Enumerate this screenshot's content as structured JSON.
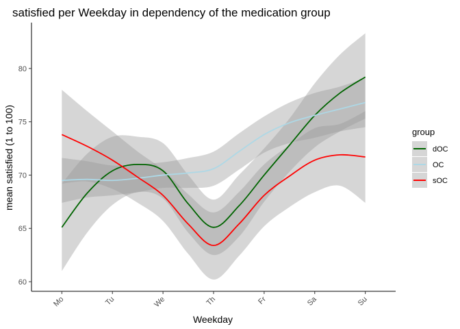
{
  "chart_data": {
    "type": "line",
    "title": "satisfied per Weekday in dependency of the medication group",
    "xlabel": "Weekday",
    "ylabel": "mean satisfied (1 to 100)",
    "categories": [
      "Mo",
      "Tu",
      "We",
      "Th",
      "Fr",
      "Sa",
      "Su"
    ],
    "yticks": [
      60,
      65,
      70,
      75,
      80
    ],
    "ylim": [
      59.1,
      84.3
    ],
    "grid": false,
    "legend": {
      "title": "group",
      "position": "right"
    },
    "series": [
      {
        "name": "dOC",
        "color": "#006400",
        "x": [
          1,
          1.5,
          2,
          2.5,
          3,
          3.5,
          4,
          4.5,
          5,
          5.5,
          6,
          6.5,
          7
        ],
        "y": [
          65.1,
          68.3,
          70.4,
          71.0,
          70.4,
          67.3,
          65.1,
          67.1,
          70.0,
          72.8,
          75.6,
          77.7,
          79.2
        ],
        "lower": [
          61.0,
          64.6,
          67.2,
          68.4,
          67.8,
          64.6,
          62.5,
          64.2,
          67.5,
          70.3,
          72.6,
          74.1,
          75.3
        ],
        "upper": [
          69.2,
          72.0,
          73.6,
          73.6,
          73.0,
          70.0,
          67.7,
          70.0,
          72.5,
          75.3,
          78.6,
          81.3,
          83.3
        ]
      },
      {
        "name": "OC",
        "color": "#add8e6",
        "x": [
          1,
          1.5,
          2,
          2.5,
          3,
          3.5,
          4,
          4.5,
          5,
          5.5,
          6,
          6.5,
          7
        ],
        "y": [
          69.5,
          69.6,
          69.5,
          69.7,
          70.0,
          70.2,
          70.6,
          72.2,
          73.8,
          74.9,
          75.6,
          76.2,
          76.8
        ],
        "lower": [
          67.4,
          67.9,
          68.1,
          68.4,
          68.8,
          68.8,
          69.0,
          70.5,
          72.1,
          73.0,
          73.5,
          74.1,
          74.5
        ],
        "upper": [
          71.6,
          71.3,
          70.9,
          71.0,
          71.2,
          71.6,
          72.2,
          73.9,
          75.5,
          76.8,
          77.7,
          78.3,
          79.1
        ]
      },
      {
        "name": "sOC",
        "color": "#ff0000",
        "x": [
          1,
          1.5,
          2,
          2.5,
          3,
          3.5,
          4,
          4.5,
          5,
          5.5,
          6,
          6.5,
          7
        ],
        "y": [
          73.8,
          72.7,
          71.4,
          69.8,
          68.1,
          65.4,
          63.4,
          65.4,
          68.1,
          69.9,
          71.4,
          71.9,
          71.7
        ],
        "lower": [
          69.2,
          69.4,
          68.7,
          67.4,
          65.7,
          62.6,
          60.2,
          62.4,
          65.2,
          67.0,
          68.4,
          69.0,
          67.4
        ],
        "upper": [
          78.0,
          76.0,
          74.1,
          72.2,
          70.5,
          68.2,
          66.5,
          68.4,
          71.0,
          72.8,
          74.4,
          74.8,
          76.0
        ]
      }
    ]
  }
}
